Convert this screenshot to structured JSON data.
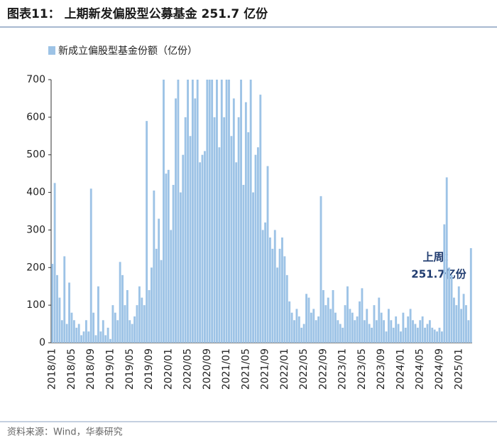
{
  "chart_data": {
    "type": "bar",
    "title": "图表11： 上期新发偏股型公募基金 251.7 亿份",
    "source": "资料来源：Wind，华泰研究",
    "annotations": [
      "上周：",
      "251.7亿份"
    ],
    "series": [
      {
        "name": "新成立偏股型基金份额（亿份）",
        "color": "#9dc3e6",
        "values": [
          210,
          425,
          180,
          120,
          60,
          230,
          50,
          160,
          80,
          60,
          40,
          50,
          20,
          30,
          60,
          30,
          410,
          80,
          20,
          150,
          30,
          60,
          20,
          40,
          10,
          100,
          80,
          60,
          215,
          180,
          100,
          140,
          60,
          50,
          70,
          100,
          150,
          120,
          100,
          590,
          140,
          200,
          405,
          250,
          330,
          220,
          700,
          450,
          460,
          300,
          420,
          650,
          700,
          400,
          500,
          600,
          700,
          550,
          700,
          650,
          700,
          480,
          500,
          510,
          700,
          700,
          700,
          600,
          700,
          520,
          700,
          600,
          700,
          700,
          550,
          650,
          480,
          600,
          700,
          420,
          640,
          560,
          700,
          400,
          500,
          520,
          660,
          300,
          320,
          470,
          280,
          250,
          300,
          200,
          250,
          280,
          230,
          180,
          110,
          80,
          60,
          90,
          70,
          40,
          50,
          130,
          120,
          80,
          90,
          60,
          70,
          390,
          140,
          100,
          120,
          90,
          140,
          80,
          60,
          50,
          40,
          100,
          150,
          90,
          80,
          60,
          70,
          110,
          145,
          60,
          90,
          50,
          40,
          100,
          60,
          120,
          80,
          60,
          30,
          90,
          60,
          40,
          70,
          50,
          30,
          80,
          40,
          70,
          90,
          60,
          50,
          40,
          60,
          70,
          40,
          50,
          60,
          40,
          35,
          30,
          40,
          30,
          315,
          440,
          200,
          180,
          120,
          100,
          150,
          90,
          130,
          100,
          60,
          251.7
        ]
      }
    ],
    "categories": [
      "2018/01",
      null,
      null,
      null,
      null,
      null,
      null,
      null,
      "2018/05",
      null,
      null,
      null,
      null,
      null,
      null,
      null,
      "2018/09",
      null,
      null,
      null,
      null,
      null,
      null,
      null,
      "2019/01",
      null,
      null,
      null,
      null,
      null,
      null,
      null,
      "2019/05",
      null,
      null,
      null,
      null,
      null,
      null,
      null,
      "2019/09",
      null,
      null,
      null,
      null,
      null,
      null,
      null,
      "2020/01",
      null,
      null,
      null,
      null,
      null,
      null,
      null,
      "2020/05",
      null,
      null,
      null,
      null,
      null,
      null,
      null,
      "2020/09",
      null,
      null,
      null,
      null,
      null,
      null,
      null,
      "2021/01",
      null,
      null,
      null,
      null,
      null,
      null,
      null,
      "2021/05",
      null,
      null,
      null,
      null,
      null,
      null,
      null,
      "2021/09",
      null,
      null,
      null,
      null,
      null,
      null,
      null,
      "2022/01",
      null,
      null,
      null,
      null,
      null,
      null,
      null,
      "2022/05",
      null,
      null,
      null,
      null,
      null,
      null,
      null,
      "2022/09",
      null,
      null,
      null,
      null,
      null,
      null,
      null,
      "2023/01",
      null,
      null,
      null,
      null,
      null,
      null,
      null,
      "2023/05",
      null,
      null,
      null,
      null,
      null,
      null,
      null,
      "2023/09",
      null,
      null,
      null,
      null,
      null,
      null,
      null,
      "2024/01",
      null,
      null,
      null,
      null,
      null,
      null,
      null,
      "2024/05",
      null,
      null,
      null,
      null,
      null,
      null,
      null,
      "2024/09",
      null,
      null,
      null,
      null,
      null,
      null,
      null,
      "2025/01",
      null,
      null,
      null,
      null,
      null
    ],
    "ylim": [
      0,
      700
    ],
    "yticks": [
      0,
      100,
      200,
      300,
      400,
      500,
      600,
      700
    ],
    "grid": false
  }
}
